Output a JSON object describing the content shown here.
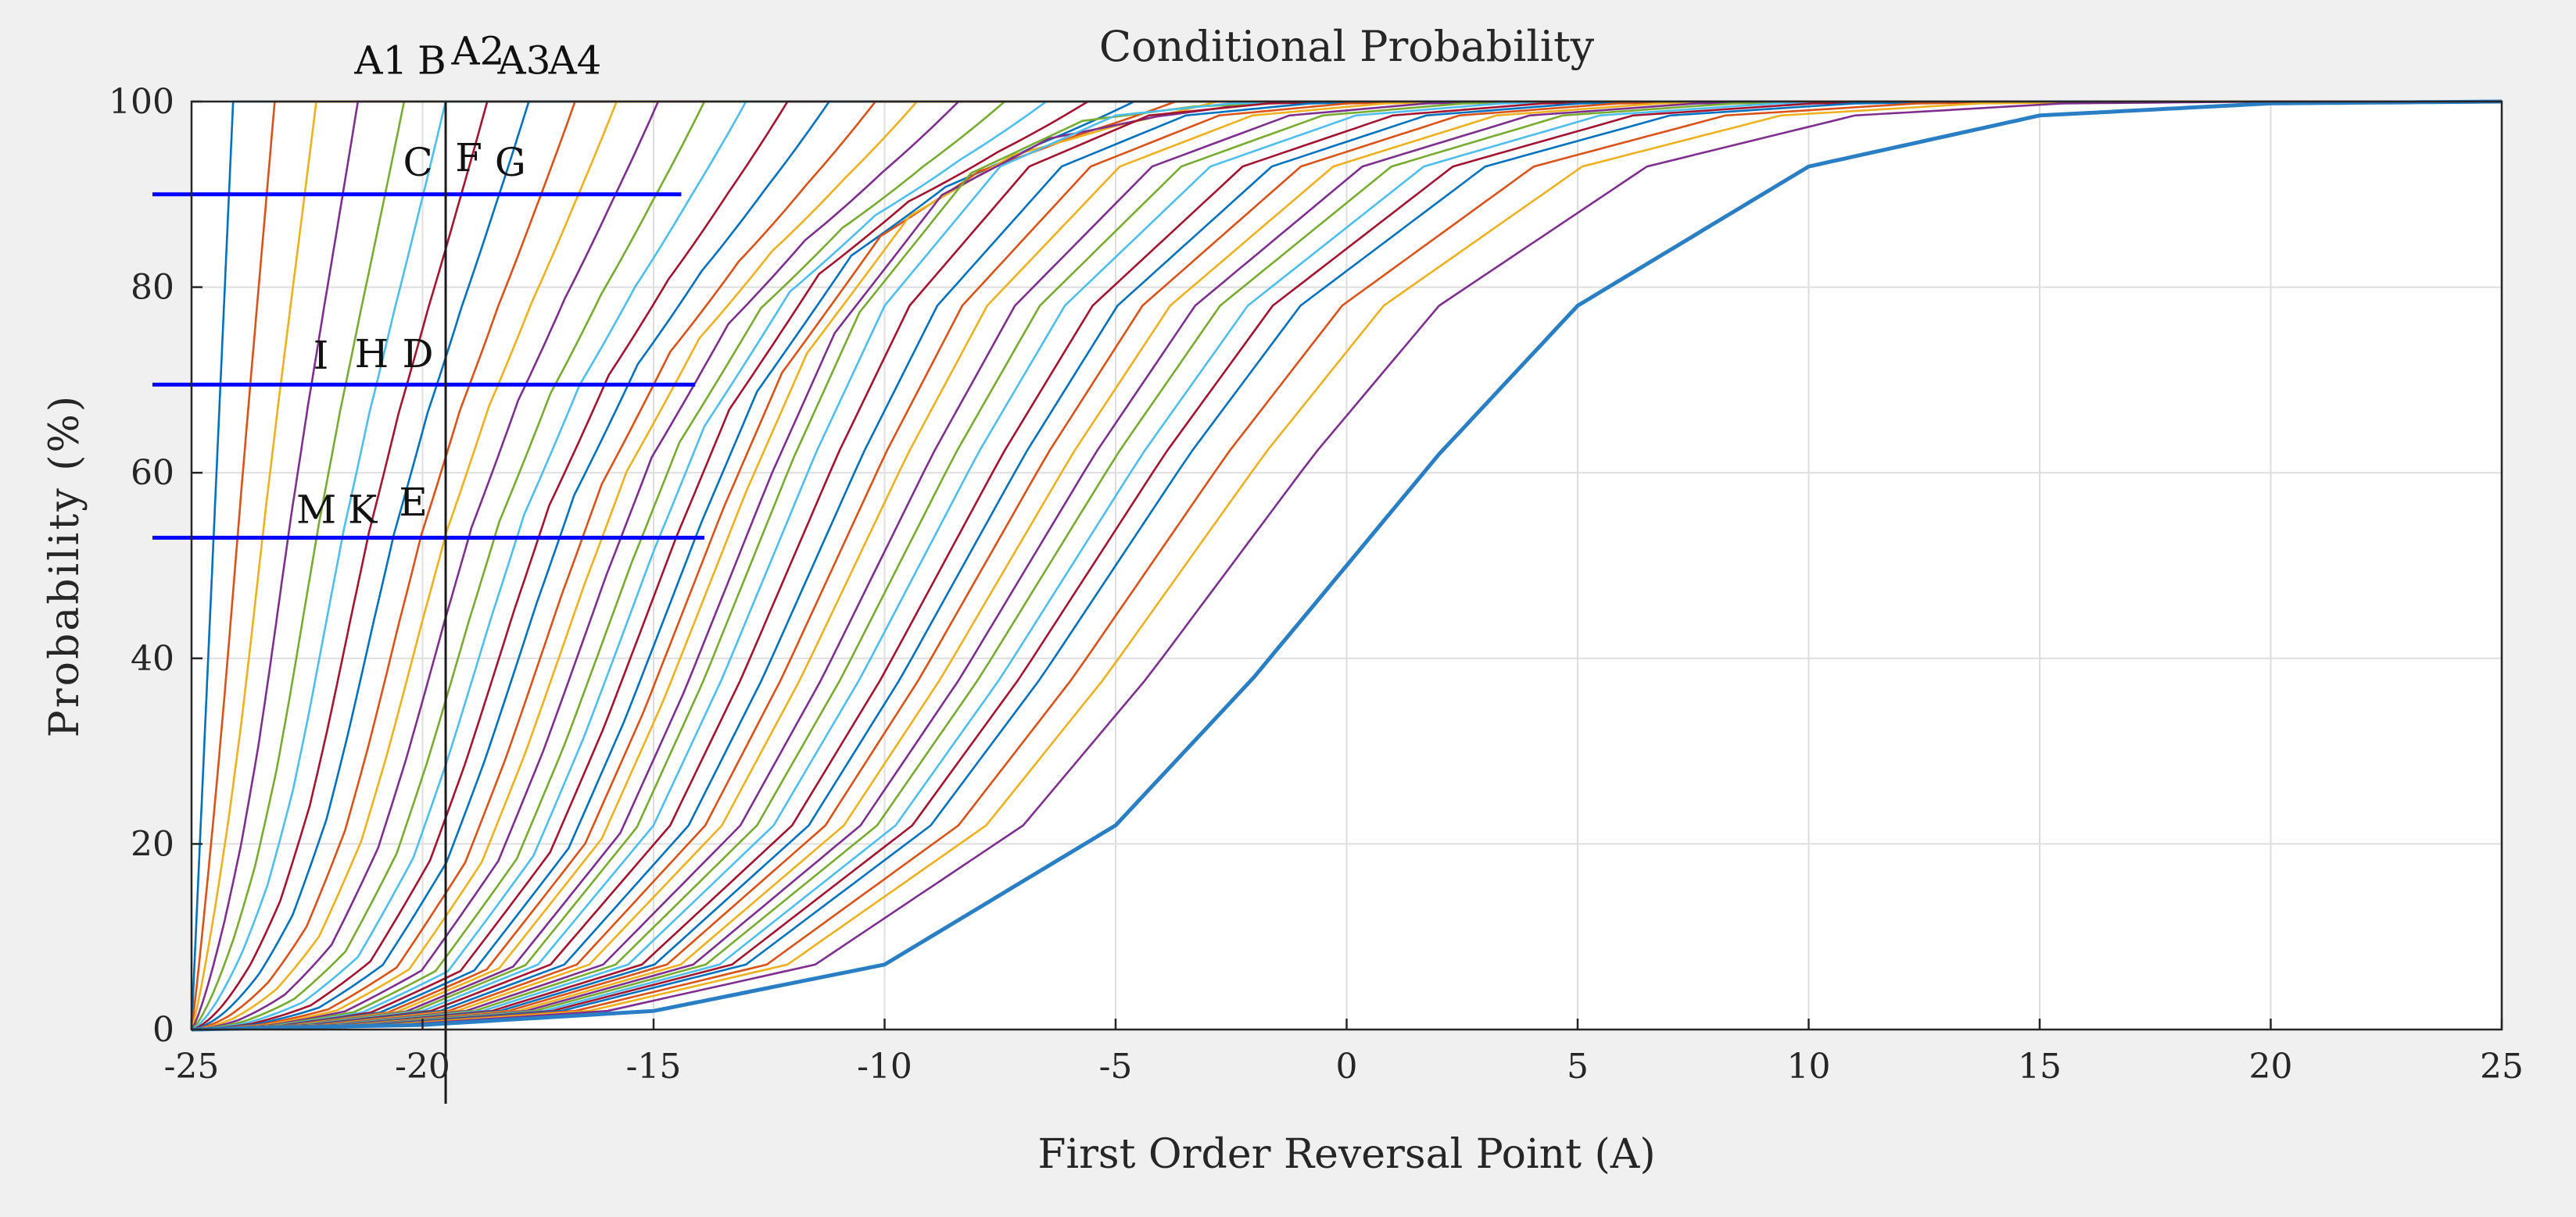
{
  "chart_data": {
    "type": "line",
    "title": "Conditional Probability",
    "xlabel": "First Order Reversal Point (A)",
    "ylabel": "Probability (%)",
    "xlim": [
      -25,
      25
    ],
    "ylim": [
      0,
      100
    ],
    "xticks": [
      "-25",
      "-20",
      "-15",
      "-10",
      "-5",
      "0",
      "5",
      "10",
      "15",
      "20",
      "25"
    ],
    "yticks": [
      "0",
      "20",
      "40",
      "60",
      "80",
      "100"
    ],
    "grid": true,
    "legend": "none",
    "series_description": "Family of cumulative probability curves, one per first-order reversal starting point; each rises from 0% at x = -25 to 100%. Steepest curve reaches 100% at about x = -24.1; curves spread until the limiting curve crosses 50% near x = 0 and approaches 100% near x = 20.",
    "series_colors": [
      "#0072BD",
      "#D95319",
      "#EDB120",
      "#7E2F8E",
      "#77AC30",
      "#4DBEEE",
      "#A2142F"
    ],
    "series": [
      {
        "values_at": "reach 100% at x",
        "x100": -24.1
      },
      {
        "x100": -23.2
      },
      {
        "x100": -22.3
      },
      {
        "x100": -21.4
      },
      {
        "x100": -20.4
      },
      {
        "x100": -19.5
      },
      {
        "x100": -18.6
      },
      {
        "x100": -17.7
      },
      {
        "x100": -16.7
      },
      {
        "x100": -15.8
      },
      {
        "x100": -14.9
      },
      {
        "x100": -13.9
      },
      {
        "x100": -13.0
      },
      {
        "x100": -12.1
      },
      {
        "x100": -11.2
      },
      {
        "x100": -10.2
      },
      {
        "x100": -9.3
      },
      {
        "x100": -8.4
      },
      {
        "x100": -7.4
      },
      {
        "x100": -6.5
      },
      {
        "x100": -5.6
      },
      {
        "x100": -4.6
      },
      {
        "x100": -3.7
      },
      {
        "x100": -2.8
      },
      {
        "x100": -1.8
      },
      {
        "x100": -0.9
      },
      {
        "x100": 0.0
      },
      {
        "x100": 0.9
      },
      {
        "x100": 1.9
      },
      {
        "x100": 2.8
      },
      {
        "x100": 3.7
      },
      {
        "x100": 4.7
      },
      {
        "x100": 5.6
      },
      {
        "x100": 6.5
      },
      {
        "x100": 7.5
      },
      {
        "x100": 8.4
      },
      {
        "x100": 9.3
      },
      {
        "x100": 10.3
      },
      {
        "x100": 11.2
      },
      {
        "x100": 12.1
      },
      {
        "x100": 13.1
      },
      {
        "x100": 14.0
      },
      {
        "x100": 15.0
      },
      {
        "x100": 16.5
      },
      {
        "x100": 18.0
      },
      {
        "x100": 20.0
      }
    ],
    "limiting_curve": {
      "x": [
        -25,
        -20,
        -15,
        -10,
        -5,
        -2,
        0,
        2,
        5,
        10,
        15,
        20,
        25
      ],
      "y": [
        0,
        0.5,
        2,
        7,
        22,
        38,
        50,
        62,
        78,
        93,
        98.5,
        99.8,
        100
      ]
    },
    "reference_lines": {
      "horizontal": [
        {
          "y": 90,
          "x_range": [
            -25,
            -14.4
          ],
          "color": "#0000ff"
        },
        {
          "y": 69.5,
          "x_range": [
            -25,
            -14.1
          ],
          "color": "#0000ff"
        },
        {
          "y": 53,
          "x_range": [
            -25,
            -13.9
          ],
          "color": "#0000ff"
        }
      ],
      "vertical": [
        {
          "x": -19.5,
          "y_range": [
            -8,
            100
          ],
          "color": "#1a1a1a"
        }
      ]
    },
    "annotations": [
      {
        "text": "A1",
        "x": -20.9,
        "y": 103
      },
      {
        "text": "B",
        "x": -19.8,
        "y": 103
      },
      {
        "text": "A2",
        "x": -18.8,
        "y": 104
      },
      {
        "text": "A3",
        "x": -17.8,
        "y": 103
      },
      {
        "text": "A4",
        "x": -16.7,
        "y": 103
      },
      {
        "text": "C",
        "x": -20.1,
        "y": 92
      },
      {
        "text": "F",
        "x": -19.0,
        "y": 92.5
      },
      {
        "text": "G",
        "x": -18.1,
        "y": 92
      },
      {
        "text": "I",
        "x": -22.2,
        "y": 71.2
      },
      {
        "text": "H",
        "x": -21.1,
        "y": 71.4
      },
      {
        "text": "D",
        "x": -20.1,
        "y": 71.4
      },
      {
        "text": "M",
        "x": -22.3,
        "y": 54.6
      },
      {
        "text": "K",
        "x": -21.3,
        "y": 54.6
      },
      {
        "text": "E",
        "x": -20.2,
        "y": 55.4
      }
    ]
  }
}
